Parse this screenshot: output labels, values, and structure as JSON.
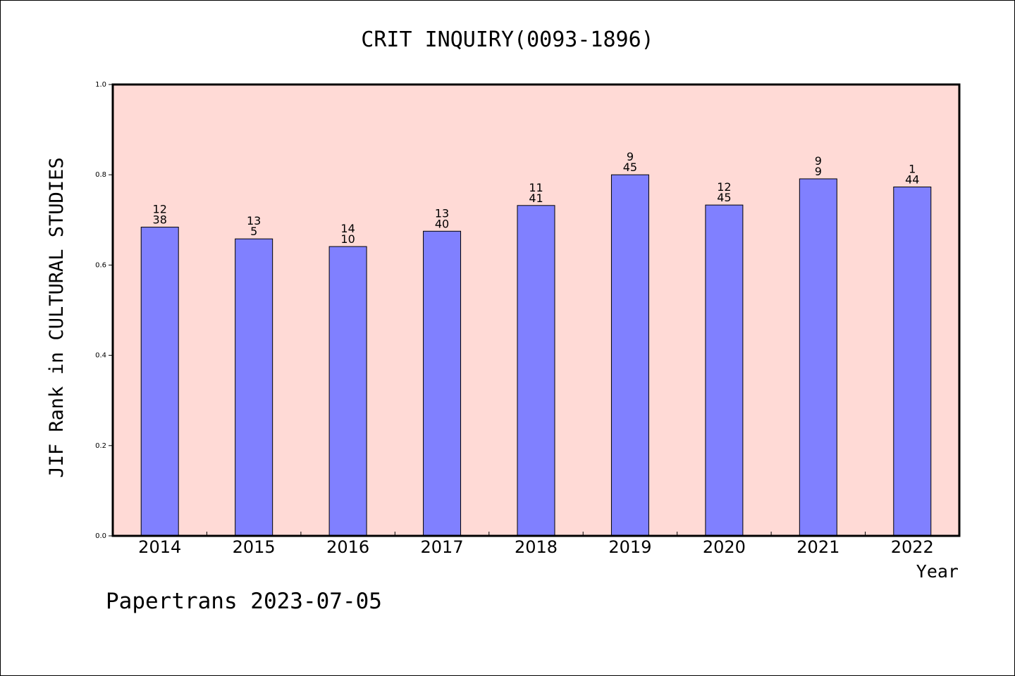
{
  "chart_data": {
    "type": "bar",
    "title": "CRIT INQUIRY(0093-1896)",
    "xlabel": "Year",
    "ylabel": "JIF Rank in CULTURAL STUDIES",
    "footer": "Papertrans 2023-07-05",
    "ylim": [
      0,
      1.0
    ],
    "yticks": [
      "0.0",
      "0.2",
      "0.4",
      "0.6",
      "0.8",
      "1.0"
    ],
    "categories": [
      "2014",
      "2015",
      "2016",
      "2017",
      "2018",
      "2019",
      "2020",
      "2021",
      "2022"
    ],
    "values": [
      0.684,
      0.658,
      0.641,
      0.675,
      0.732,
      0.8,
      0.733,
      0.791,
      0.773
    ],
    "label_top": [
      "12",
      "13",
      "14",
      "13",
      "11",
      "9",
      "12",
      "9",
      "1"
    ],
    "label_bottom": [
      "38",
      "5",
      "10",
      "40",
      "41",
      "45",
      "45",
      "9",
      "44"
    ],
    "grid": false,
    "colors": {
      "plot_background": "#ffdad6",
      "bar_fill": "#8080ff",
      "bar_stroke": "#000000"
    }
  }
}
